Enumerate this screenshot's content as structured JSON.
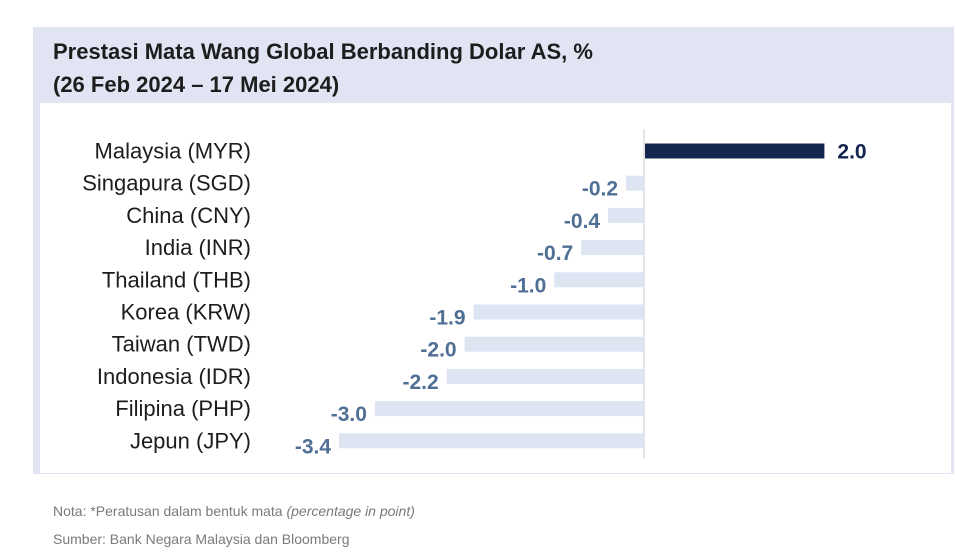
{
  "chart_data": {
    "type": "bar",
    "orientation": "horizontal",
    "title": "Prestasi Mata Wang Global Berbanding Dolar AS, %",
    "subtitle": "(26 Feb 2024 – 17 Mei 2024)",
    "categories": [
      "Malaysia (MYR)",
      "Singapura (SGD)",
      "China (CNY)",
      "India (INR)",
      "Thailand (THB)",
      "Korea (KRW)",
      "Taiwan (TWD)",
      "Indonesia (IDR)",
      "Filipina (PHP)",
      "Jepun (JPY)"
    ],
    "values": [
      2.0,
      -0.2,
      -0.4,
      -0.7,
      -1.0,
      -1.9,
      -2.0,
      -2.2,
      -3.0,
      -3.4
    ],
    "value_labels": [
      "2.0",
      "-0.2",
      "-0.4",
      "-0.7",
      "-1.0",
      "-1.9",
      "-2.0",
      "-2.2",
      "-3.0",
      "-3.4"
    ],
    "xlim": [
      -3.4,
      2.0
    ],
    "grid": false,
    "legend": "none",
    "colors": {
      "positive_bar": "#13244f",
      "negative_bar": "#dde5f2",
      "positive_label": "#13244f",
      "negative_label": "#4f6f95",
      "category_label": "#1d1d1d",
      "axis_line": "#c8c8c8",
      "panel_background": "#e1e4f3"
    }
  },
  "footnotes": {
    "note_prefix": "Nota: *Peratusan dalam bentuk mata ",
    "note_italic": "(percentage in point)",
    "source": "Sumber: Bank Negara Malaysia dan Bloomberg"
  }
}
